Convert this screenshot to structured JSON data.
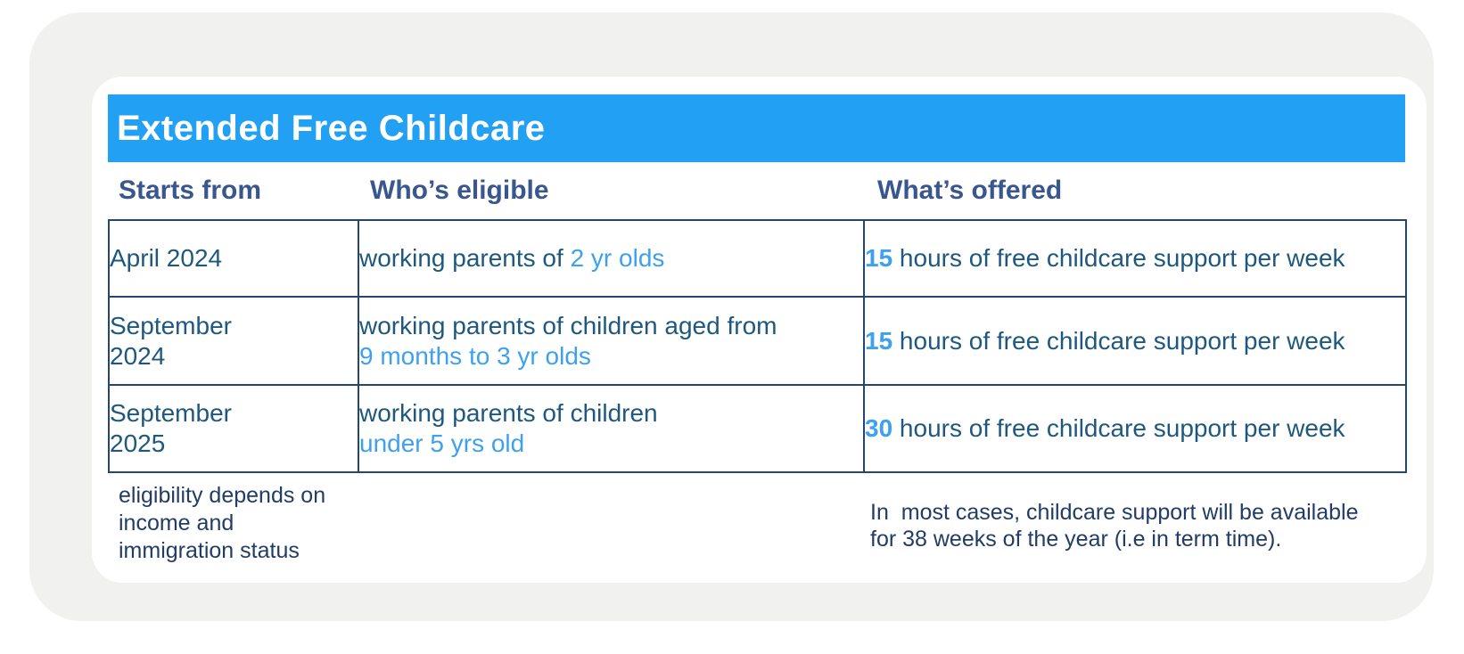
{
  "card": {
    "title": "Extended Free Childcare"
  },
  "table": {
    "columns": [
      "Starts from",
      "Who’s eligible",
      "What’s offered"
    ],
    "rows": [
      {
        "starts_lines": [
          "April 2024"
        ],
        "eligible_plain": "working parents of ",
        "eligible_highlight": "2 yr olds",
        "hours": "15",
        "offered_rest": " hours of free childcare support per week"
      },
      {
        "starts_lines": [
          "September",
          "2024"
        ],
        "eligible_plain": "working parents of children aged from",
        "eligible_highlight": "9 months to 3 yr olds",
        "hours": "15",
        "offered_rest": " hours of free childcare support per week"
      },
      {
        "starts_lines": [
          "September",
          "2025"
        ],
        "eligible_plain": "working parents of children",
        "eligible_highlight": "under 5 yrs old",
        "hours": "30",
        "offered_rest": " hours of free childcare support per week"
      }
    ]
  },
  "notes": {
    "left": "eligibility depends on\nincome and\nimmigration status",
    "right": "In  most cases, childcare support will be available\nfor 38 weeks of the year (i.e in term time)."
  },
  "colors": {
    "header_bar_blue": "#22A0F3",
    "highlight_blue": "#3EA1EF",
    "column_header_navy": "#39568F",
    "body_text_blue": "#1E587F",
    "note_text_navy": "#213C66",
    "table_border": "#24476B",
    "card_background_gray": "#F1F1EF",
    "title_text": "#FFFFFF"
  },
  "chart_data": {
    "type": "table",
    "title": "Extended Free Childcare",
    "columns": [
      "Starts from",
      "Who’s eligible",
      "What’s offered"
    ],
    "rows": [
      [
        "April 2024",
        "working parents of 2 yr olds",
        "15 hours of free childcare support per week"
      ],
      [
        "September 2024",
        "working parents of children aged from 9 months to 3 yr olds",
        "15 hours of free childcare support per week"
      ],
      [
        "September 2025",
        "working parents of children under 5 yrs old",
        "30 hours of free childcare support per week"
      ]
    ],
    "notes": [
      "eligibility depends on income and immigration status",
      "In most cases, childcare support will be available for 38 weeks of the year (i.e in term time)."
    ]
  }
}
